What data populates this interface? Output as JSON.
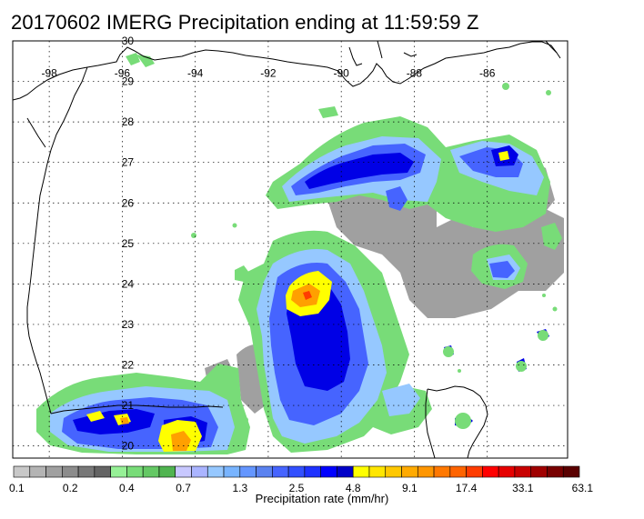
{
  "title": "20170602 IMERG Precipitation ending at 11:59:59 Z",
  "map": {
    "lon_range": [
      -99,
      -83.8
    ],
    "lat_range": [
      19.7,
      30
    ],
    "lon_ticks": [
      {
        "value": -98,
        "label": "-98"
      },
      {
        "value": -96,
        "label": "-96"
      },
      {
        "value": -94,
        "label": "-94"
      },
      {
        "value": -92,
        "label": "-92"
      },
      {
        "value": -90,
        "label": "-90"
      },
      {
        "value": -88,
        "label": "-88"
      },
      {
        "value": -86,
        "label": "-86"
      }
    ],
    "lat_ticks": [
      {
        "value": 30,
        "label": "30"
      },
      {
        "value": 29,
        "label": "29"
      },
      {
        "value": 28,
        "label": "28"
      },
      {
        "value": 27,
        "label": "27"
      },
      {
        "value": 26,
        "label": "26"
      },
      {
        "value": 25,
        "label": "25"
      },
      {
        "value": 24,
        "label": "24"
      },
      {
        "value": 23,
        "label": "23"
      },
      {
        "value": 22,
        "label": "22"
      },
      {
        "value": 21,
        "label": "21"
      },
      {
        "value": 20,
        "label": "20"
      }
    ],
    "gridlines": true,
    "coast_color": "#000000"
  },
  "colorbar": {
    "title": "Precipitation rate (mm/hr)",
    "colors": [
      "#c8c8c8",
      "#b4b4b4",
      "#a0a0a0",
      "#8c8c8c",
      "#787878",
      "#646464",
      "#96f096",
      "#78dc78",
      "#64c864",
      "#50b450",
      "#c8c8ff",
      "#aab4ff",
      "#96c8ff",
      "#78b4ff",
      "#6496ff",
      "#5a82f0",
      "#4664ff",
      "#3250ff",
      "#1e32ff",
      "#0000ff",
      "#0000c8",
      "#ffff00",
      "#ffe600",
      "#ffc800",
      "#ffaa00",
      "#ff9600",
      "#ff7800",
      "#ff6400",
      "#ff3c00",
      "#ff0000",
      "#e60000",
      "#c80000",
      "#a00000",
      "#780000",
      "#5a0000"
    ],
    "labels": [
      "0.1",
      "0.2",
      "0.4",
      "0.7",
      "1.3",
      "2.5",
      "4.8",
      "9.1",
      "17.4",
      "33.1",
      "63.1"
    ]
  },
  "precip_palette": {
    "gray": "#a0a0a0",
    "green": "#78dc78",
    "lightblue": "#96c8ff",
    "blue": "#4664ff",
    "darkblue": "#0000e6",
    "yellow": "#ffff00",
    "orange": "#ffa000",
    "red": "#ff3c00"
  }
}
